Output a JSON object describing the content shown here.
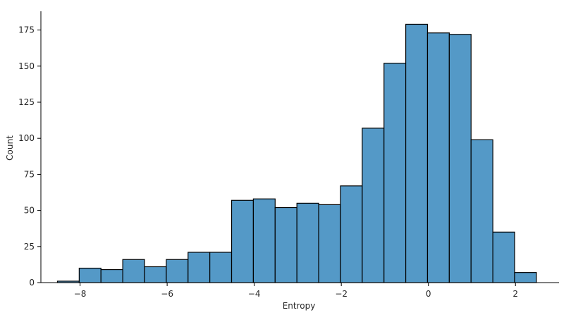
{
  "chart_data": {
    "type": "bar",
    "title": "",
    "xlabel": "Entropy",
    "ylabel": "Count",
    "xlim": [
      -8.9,
      3.0
    ],
    "ylim": [
      0,
      188
    ],
    "xticks": [
      -8,
      -6,
      -4,
      -2,
      0,
      2
    ],
    "xtick_labels": [
      "−8",
      "−6",
      "−4",
      "−2",
      "0",
      "2"
    ],
    "yticks": [
      0,
      25,
      50,
      75,
      100,
      125,
      150,
      175
    ],
    "ytick_labels": [
      "0",
      "25",
      "50",
      "75",
      "100",
      "125",
      "150",
      "175"
    ],
    "grid": false,
    "bar_color": "#5499c7",
    "bin_edges": [
      -8.52,
      -8.02,
      -7.52,
      -7.02,
      -6.52,
      -6.02,
      -5.52,
      -5.02,
      -4.52,
      -4.02,
      -3.52,
      -3.02,
      -2.52,
      -2.02,
      -1.52,
      -1.02,
      -0.52,
      -0.02,
      0.48,
      0.98,
      1.48,
      1.98,
      2.48
    ],
    "values": [
      1,
      10,
      9,
      16,
      11,
      16,
      21,
      21,
      57,
      58,
      52,
      55,
      54,
      67,
      107,
      152,
      179,
      173,
      172,
      99,
      35,
      7
    ]
  }
}
